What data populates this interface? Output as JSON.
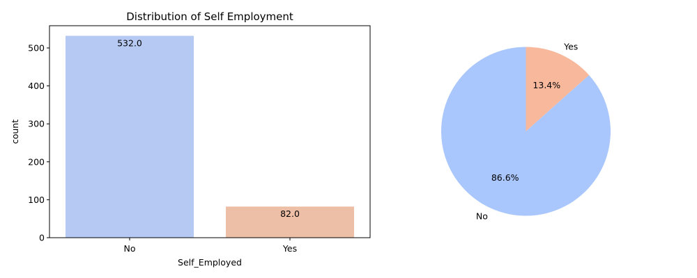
{
  "chart_data": [
    {
      "type": "bar",
      "title": "Distribution of Self Employment",
      "xlabel": "Self_Employed",
      "ylabel": "count",
      "categories": [
        "No",
        "Yes"
      ],
      "values": [
        532,
        82
      ],
      "bar_labels": [
        "532.0",
        "82.0"
      ],
      "colors": [
        "#b5c9f3",
        "#edbfa7"
      ],
      "ylim": [
        0,
        558.6
      ],
      "yticks": [
        0,
        100,
        200,
        300,
        400,
        500
      ],
      "ytick_labels": [
        "0",
        "100",
        "200",
        "300",
        "400",
        "500"
      ],
      "grid": false
    },
    {
      "type": "pie",
      "labels": [
        "Yes",
        "No"
      ],
      "values": [
        13.4,
        86.6
      ],
      "pct_labels": [
        "13.4%",
        "86.6%"
      ],
      "colors": [
        "#f7b89c",
        "#aac7fd"
      ],
      "start_angle_deg": 90,
      "direction": "clockwise"
    }
  ]
}
